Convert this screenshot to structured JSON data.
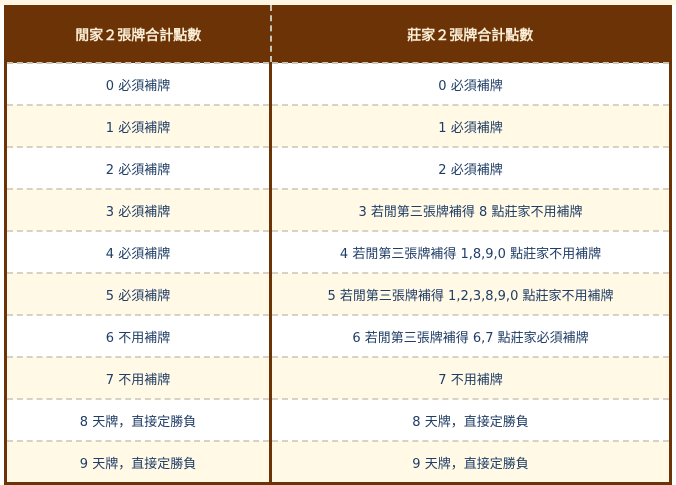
{
  "headers": [
    "閒家２張牌合計點數",
    "莊家２張牌合計點數"
  ],
  "rows": [
    [
      "0 必須補牌",
      "0 必須補牌"
    ],
    [
      "1 必須補牌",
      "1 必須補牌"
    ],
    [
      "2 必須補牌",
      "2 必須補牌"
    ],
    [
      "3 必須補牌",
      "3 若閒第三張牌補得 8 點莊家不用補牌"
    ],
    [
      "4 必須補牌",
      "4 若閒第三張牌補得 1,8,9,0 點莊家不用補牌"
    ],
    [
      "5 必須補牌",
      "5 若閒第三張牌補得 1,2,3,8,9,0 點莊家不用補牌"
    ],
    [
      "6 不用補牌",
      "6 若閒第三張牌補得 6,7 點莊家必須補牌"
    ],
    [
      "7 不用補牌",
      "7 不用補牌"
    ],
    [
      "8 天牌，直接定勝負",
      "8 天牌，直接定勝負"
    ],
    [
      "9 天牌，直接定勝負",
      "9 天牌，直接定勝負"
    ]
  ],
  "colors": {
    "header_bg": "#6b3306",
    "text": "#1f3d66",
    "alt_row": "#fff9e6"
  }
}
